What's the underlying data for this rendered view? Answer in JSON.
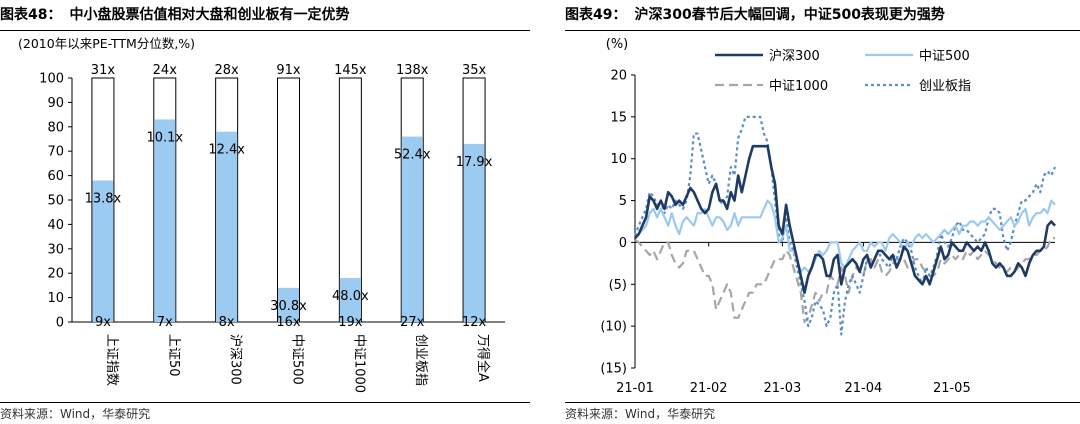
{
  "left": {
    "figure_label": "图表48：",
    "title": "中小盘股票估值相对大盘和创业板有一定优势",
    "subtitle": "(2010年以来PE-TTM分位数,%)",
    "source": "资料来源：Wind，华泰研究",
    "chart_data": {
      "type": "bar",
      "categories": [
        "上证指数",
        "上证50",
        "沪深300",
        "中证500",
        "中证1000",
        "创业板指",
        "万得全A"
      ],
      "values": [
        58,
        83,
        78,
        14,
        18,
        76,
        73
      ],
      "current_labels": [
        "13.8x",
        "10.1x",
        "12.4x",
        "30.8x",
        "48.0x",
        "52.4x",
        "17.9x"
      ],
      "max_labels": [
        "31x",
        "24x",
        "28x",
        "91x",
        "145x",
        "138x",
        "35x"
      ],
      "min_labels": [
        "9x",
        "7x",
        "8x",
        "16x",
        "19x",
        "27x",
        "12x"
      ],
      "ylim": [
        0,
        100
      ],
      "yticks": [
        0,
        10,
        20,
        30,
        40,
        50,
        60,
        70,
        80,
        90,
        100
      ],
      "colors": {
        "fill": "#9ccbf2",
        "outline": "#000000"
      }
    }
  },
  "right": {
    "figure_label": "图表49：",
    "title": "沪深300春节后大幅回调，中证500表现更为强势",
    "unit": "(%)",
    "source": "资料来源：Wind，华泰研究",
    "chart_data": {
      "type": "line",
      "ylim": [
        -15,
        20
      ],
      "yticks": [
        20,
        15,
        10,
        5,
        0,
        -5,
        -10,
        -15
      ],
      "ytick_labels": [
        "20",
        "15",
        "10",
        "5",
        "0",
        "(5)",
        "(10)",
        "(15)"
      ],
      "xtick_labels": [
        "21-01",
        "21-02",
        "21-03",
        "21-04",
        "21-05"
      ],
      "xtick_positions": [
        0,
        20,
        40,
        62,
        86
      ],
      "n_points": 115,
      "legend": [
        "沪深300",
        "中证500",
        "中证1000",
        "创业板指"
      ],
      "series": [
        {
          "name": "沪深300",
          "color": "#1f3b64",
          "dash": "",
          "values": [
            0.5,
            1,
            2,
            3,
            5.5,
            5,
            4,
            5,
            4,
            6,
            5.5,
            4.5,
            5,
            4.5,
            5.5,
            6.5,
            6,
            5,
            4,
            3.5,
            4,
            6,
            7,
            5,
            5,
            4,
            6,
            5,
            8,
            6,
            8,
            10,
            11.5,
            11.5,
            11.5,
            11.5,
            11.5,
            9,
            7,
            2,
            1,
            4.5,
            2,
            0,
            -2,
            -4,
            -6,
            -4,
            -3,
            -1.5,
            -1.5,
            -2,
            -4,
            -4,
            -2,
            -1.5,
            -5,
            -3,
            -2.5,
            -2,
            -2.5,
            -3.5,
            -2,
            -1.5,
            -3,
            -2,
            -1,
            -1,
            -1.5,
            -2,
            -1.5,
            -3,
            -2,
            -0.5,
            -1,
            -2.5,
            -4,
            -4.5,
            -5,
            -4,
            -5,
            -3.5,
            -2,
            -0.5,
            -2,
            -1.5,
            0,
            -0.5,
            -1,
            -1,
            0,
            -0.5,
            -1,
            -0.5,
            -1,
            0,
            -1,
            -2.5,
            -3,
            -2.5,
            -3,
            -4,
            -4,
            -3.5,
            -2.5,
            -3,
            -4,
            -2.5,
            -1.5,
            -1,
            -1,
            -0.5,
            2,
            2.5,
            2
          ]
        },
        {
          "name": "中证500",
          "color": "#9cc9f0",
          "dash": "",
          "values": [
            0.5,
            1,
            1.5,
            2,
            3.5,
            4,
            3,
            4,
            3,
            2,
            3.5,
            2,
            1,
            2.5,
            3,
            2.5,
            2,
            3.5,
            3.5,
            4,
            3,
            2,
            3,
            3,
            2.5,
            1.5,
            2,
            3.5,
            2,
            3,
            3,
            3,
            3,
            3,
            3,
            4,
            5,
            4.5,
            3,
            0,
            0.5,
            2,
            -1,
            -1,
            -2,
            -3.5,
            -3,
            -3.5,
            -3,
            -2,
            -1,
            -1.5,
            -1,
            0,
            0,
            0,
            -2.5,
            -3,
            -2,
            -1,
            -0.5,
            0,
            -1,
            -1,
            0,
            -0.5,
            0,
            0,
            -1,
            0.5,
            1,
            0.5,
            0,
            -1,
            0,
            -0.5,
            0.5,
            1,
            0.5,
            1,
            0.5,
            0,
            0.5,
            1,
            1.5,
            1,
            1.5,
            2,
            1,
            2,
            2,
            2.5,
            2.5,
            2,
            2.5,
            2.5,
            3,
            2.5,
            2,
            1.5,
            2,
            2.5,
            3,
            2,
            2.5,
            3.5,
            4,
            2,
            3,
            3.5,
            3.5,
            4,
            3.5,
            5,
            4.5
          ]
        },
        {
          "name": "中证1000",
          "color": "#a6a6a6",
          "dash": "9,5",
          "values": [
            0.3,
            0,
            -0.5,
            -1,
            -1.5,
            -1,
            -2,
            -1,
            0,
            0,
            -1.5,
            -2.5,
            -3,
            -2.5,
            -1,
            -1,
            -1,
            -2,
            -3,
            -4,
            -4,
            -5,
            -8,
            -7,
            -6,
            -5,
            -6,
            -9,
            -9,
            -8,
            -7,
            -6,
            -6,
            -5,
            -5,
            -5,
            -4,
            -3,
            -2,
            -2,
            -2,
            -1,
            -1.5,
            -3,
            -4.5,
            -6,
            -9.5,
            -9,
            -7.5,
            -6,
            -7,
            -6,
            -6,
            -4,
            -4.5,
            -5,
            -3,
            -4,
            -6,
            -4,
            -3,
            -3.5,
            -4,
            -2,
            -2,
            -3,
            -2,
            -3.5,
            -4,
            -3.5,
            -2.5,
            -2,
            -2,
            -2,
            -3,
            -2.5,
            -2,
            -2,
            -3,
            -3.5,
            -4,
            -4,
            -3.5,
            -2,
            -2.5,
            -2,
            -1.5,
            -2,
            -1.5,
            -2,
            -1,
            -1.5,
            -1,
            -2,
            -1.5,
            -1,
            -1.5,
            -2,
            -2.5,
            -3,
            -3.5,
            -3.5,
            -3,
            -3.5,
            -3,
            -2.5,
            -2,
            -2,
            -1.5,
            -1.5,
            -1,
            -1,
            -0.5,
            0.5,
            0.5
          ]
        },
        {
          "name": "创业板指",
          "color": "#5b8ec9",
          "dash": "3,3",
          "values": [
            0.8,
            2,
            3,
            4,
            6,
            5.5,
            4.5,
            5,
            3.5,
            4.5,
            4,
            5,
            4.5,
            4,
            5,
            8,
            13,
            13,
            11,
            9,
            7,
            8,
            7,
            5,
            4.5,
            5.5,
            9,
            8,
            12.5,
            13.5,
            15,
            15,
            15,
            15,
            15,
            13,
            12,
            9,
            5,
            1,
            0,
            3,
            0,
            -1,
            -3,
            -5,
            -7,
            -10,
            -9,
            -7,
            -7.5,
            -8,
            -10,
            -9,
            -6,
            -5,
            -11,
            -7,
            -5,
            -4,
            -5,
            -6,
            -4,
            -2,
            -3,
            -2,
            -1,
            -2,
            -2.5,
            -3,
            -1.5,
            -2,
            -0.5,
            0.5,
            0,
            -1,
            -3,
            -4,
            -5,
            -3,
            -4,
            -3,
            -1.5,
            1,
            0,
            -0.5,
            0.5,
            2,
            2.5,
            1.5,
            1.5,
            1,
            0.5,
            0,
            0.5,
            1,
            3,
            4,
            4,
            3.5,
            0.5,
            -1,
            0,
            2,
            3.5,
            5,
            5,
            5.5,
            6,
            7,
            6,
            8,
            8.5,
            8,
            9
          ]
        }
      ]
    }
  }
}
